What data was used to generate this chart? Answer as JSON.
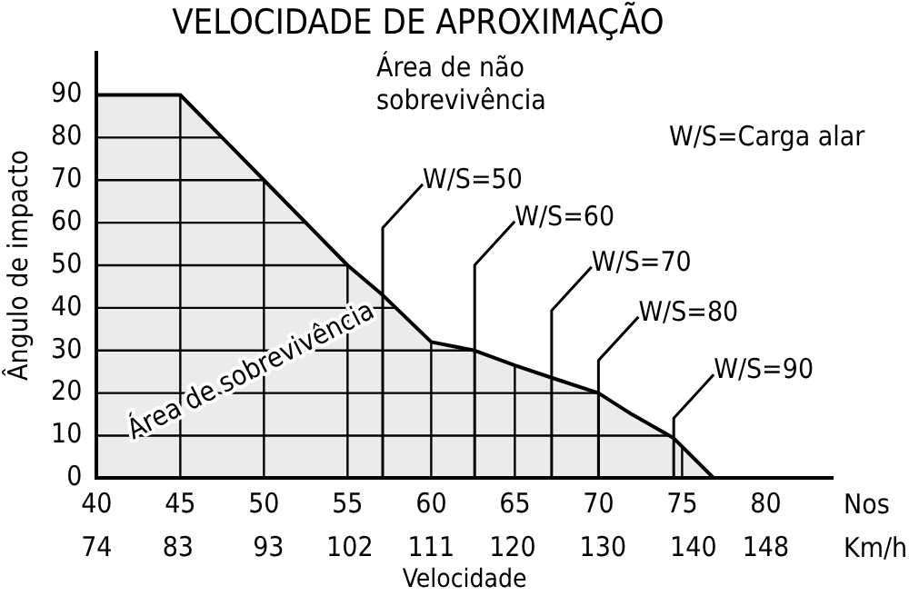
{
  "chart_data": {
    "type": "area",
    "title": "VELOCIDADE DE APROXIMAÇÃO",
    "xlabel": "Velocidade",
    "ylabel": "Ângulo de impacto",
    "x": [
      40,
      45,
      47.5,
      50,
      55,
      57.1,
      60,
      62.6,
      65,
      67.2,
      70,
      72,
      74.5,
      76.9
    ],
    "series": [
      {
        "color": "#000000",
        "values": [
          90,
          90,
          80,
          70,
          50,
          43,
          32,
          30,
          26.5,
          23.6,
          20,
          15,
          9.4,
          0
        ]
      }
    ],
    "xlim": [
      40,
      84
    ],
    "xticks": [
      40,
      45,
      50,
      55,
      60,
      65,
      70,
      75,
      80
    ],
    "x2lim": [
      74,
      155.4
    ],
    "x2ticks": [
      74,
      83,
      93,
      102,
      111,
      120,
      130,
      140,
      148
    ],
    "ylim": [
      0,
      100
    ],
    "yticks": [
      0,
      10,
      20,
      30,
      40,
      50,
      60,
      70,
      80,
      90
    ],
    "grid": true,
    "annotations": [
      {
        "text": "W/S=50",
        "x": 57.1,
        "y": 43
      },
      {
        "text": "W/S=60",
        "x": 62.6,
        "y": 30
      },
      {
        "text": "W/S=70",
        "x": 67.2,
        "y": 23.6
      },
      {
        "text": "W/S=80",
        "x": 70,
        "y": 20
      },
      {
        "text": "W/S=90",
        "x": 74.5,
        "y": 9.4
      },
      "Área de não sobrevivência",
      "W/S=Carga alar",
      "Área de sobrevivência",
      "Nos",
      "Km/h"
    ]
  }
}
